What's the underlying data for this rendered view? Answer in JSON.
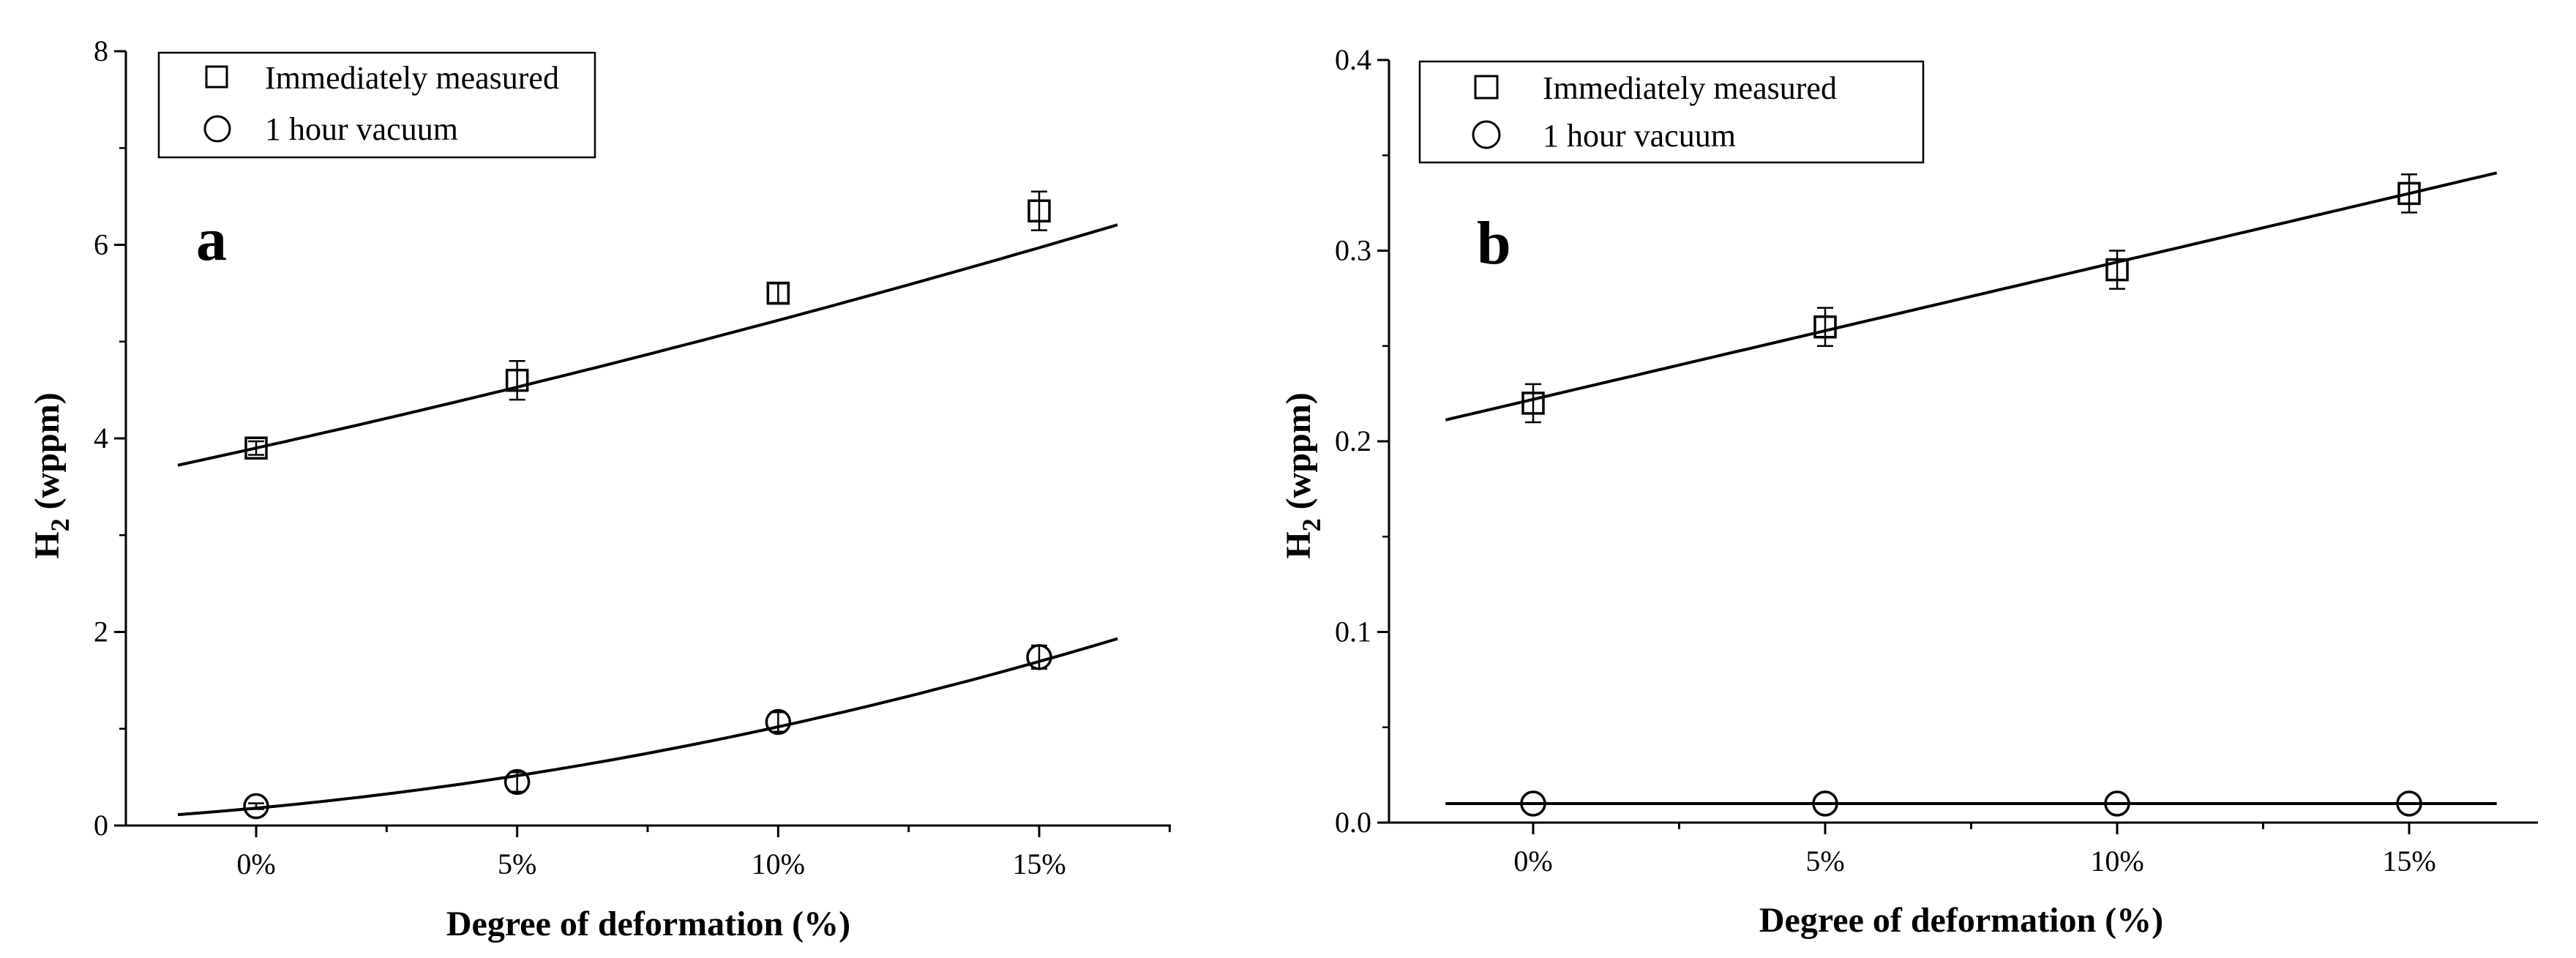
{
  "chart_data": [
    {
      "type": "scatter",
      "panel_label": "a",
      "xlabel": "Degree of deformation (%)",
      "ylabel_main": "H",
      "ylabel_sub": "2",
      "ylabel_rest": " (wppm)",
      "ylim": [
        0,
        8
      ],
      "y_ticks": [
        "0",
        "2",
        "4",
        "6",
        "8"
      ],
      "categories": [
        "0%",
        "5%",
        "10%",
        "15%"
      ],
      "legend": [
        "Immediately measured",
        "1 hour vacuum"
      ],
      "legend_position": "top-left",
      "series": [
        {
          "name": "Immediately measured",
          "marker": "square",
          "x": [
            0,
            5,
            10,
            15
          ],
          "values": [
            3.9,
            4.6,
            5.5,
            6.35
          ],
          "errors": [
            0.07,
            0.2,
            0.1,
            0.2
          ],
          "fit": [
            3.9,
            0.12,
            0.0012
          ],
          "fit_range": [
            -1.5,
            16.5
          ]
        },
        {
          "name": "1 hour vacuum",
          "marker": "circle",
          "x": [
            0,
            5,
            10,
            15
          ],
          "values": [
            0.2,
            0.45,
            1.07,
            1.74
          ],
          "errors": [
            0.03,
            0.1,
            0.1,
            0.12
          ],
          "fit": [
            0.18,
            0.05,
            0.0034
          ],
          "fit_range": [
            -1.5,
            16.5
          ]
        }
      ]
    },
    {
      "type": "scatter",
      "panel_label": "b",
      "xlabel": "Degree of deformation (%)",
      "ylabel_main": "H",
      "ylabel_sub": "2",
      "ylabel_rest": " (wppm)",
      "ylim": [
        0,
        0.4
      ],
      "y_ticks": [
        "0.0",
        "0.1",
        "0.2",
        "0.3",
        "0.4"
      ],
      "categories": [
        "0%",
        "5%",
        "10%",
        "15%"
      ],
      "legend": [
        "Immediately measured",
        "1 hour vacuum"
      ],
      "legend_position": "top-left",
      "series": [
        {
          "name": "Immediately measured",
          "marker": "square",
          "x": [
            0,
            5,
            10,
            15
          ],
          "values": [
            0.22,
            0.26,
            0.29,
            0.33
          ],
          "errors": [
            0.01,
            0.01,
            0.01,
            0.01
          ],
          "fit": [
            0.222,
            0.0072,
            0
          ],
          "fit_range": [
            -1.5,
            16.5
          ]
        },
        {
          "name": "1 hour vacuum",
          "marker": "circle",
          "x": [
            0,
            5,
            10,
            15
          ],
          "values": [
            0.01,
            0.01,
            0.01,
            0.01
          ],
          "errors": [
            0,
            0,
            0,
            0
          ],
          "fit": [
            0.01,
            0,
            0
          ],
          "fit_range": [
            -1.5,
            16.5
          ]
        }
      ]
    }
  ]
}
